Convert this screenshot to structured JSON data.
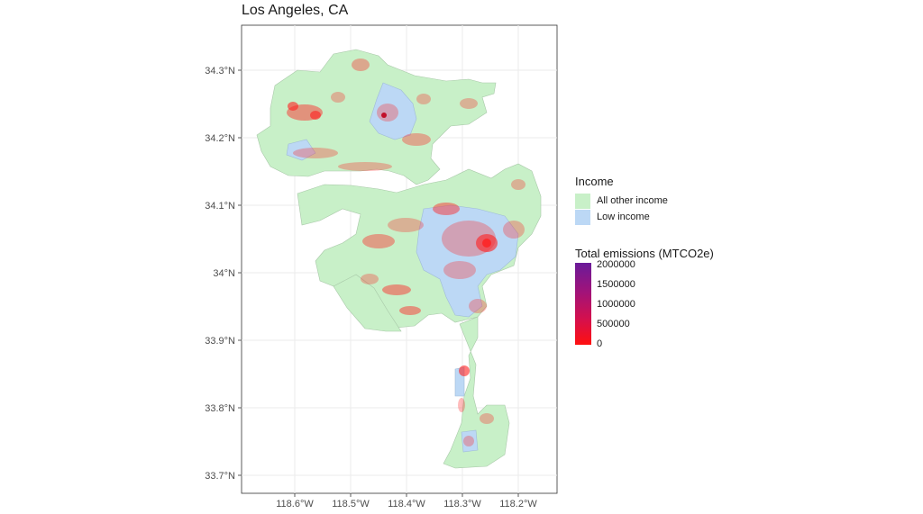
{
  "title": "Los Angeles, CA",
  "y_ticks": [
    "34.3°N",
    "34.2°N",
    "34.1°N",
    "34°N",
    "33.9°N",
    "33.8°N",
    "33.7°N"
  ],
  "x_ticks": [
    "118.6°W",
    "118.5°W",
    "118.4°W",
    "118.3°W",
    "118.2°W"
  ],
  "legend_income": {
    "title": "Income",
    "items": [
      {
        "label": "All other income",
        "color": "#c8f0c8"
      },
      {
        "label": "Low income",
        "color": "#bcd8f5"
      }
    ]
  },
  "legend_emissions": {
    "title": "Total emissions (MTCO2e)",
    "labels": [
      "2000000",
      "1500000",
      "1000000",
      "500000",
      "0"
    ],
    "color_high": "#6a1b9a",
    "color_low": "#ff1010"
  },
  "colors": {
    "land_other": "#c8f0c8",
    "land_low": "#bcd8f5",
    "emission": "#ff2020",
    "grid": "#ebebeb"
  }
}
